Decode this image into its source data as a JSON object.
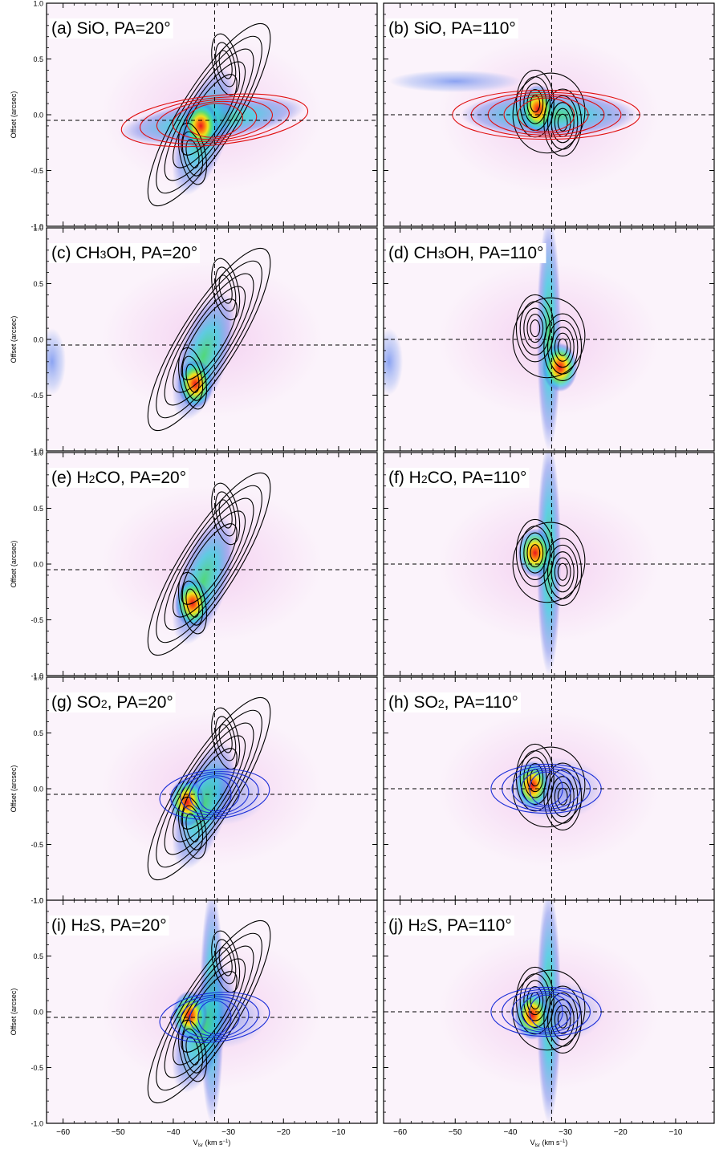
{
  "figure": {
    "xlabel_main": "V",
    "xlabel_sub": "lsr",
    "xlabel_unit_pre": " (km s",
    "xlabel_unit_exp": "−1",
    "xlabel_unit_post": ")",
    "ylabel": "Offset (arcsec)"
  },
  "colors": {
    "black_contours": "#000000",
    "red_contours": "#e01010",
    "blue_contours": "#1a2ed8",
    "dashed_lines": "#000000"
  },
  "chart_data": [
    {
      "type": "heatmap",
      "panel": "a",
      "label_pre": "(a) SiO, PA=20",
      "label_deg": "°",
      "label_suffix": "",
      "xlim": [
        -63,
        -3
      ],
      "ylim": [
        -1.0,
        1.0
      ],
      "x_ticks": [
        -60,
        -50,
        -40,
        -30,
        -20,
        -10
      ],
      "y_ticks": [
        -1.0,
        -0.5,
        0.0,
        0.5,
        1.0
      ],
      "y_tick_labels": [
        "-1.0",
        "-0.5",
        "0.0",
        "0.5",
        "1.0"
      ],
      "v_dash": -32.5,
      "h_dash": -0.05,
      "black_peaks": [
        [
          -36.5,
          -0.35
        ],
        [
          -30.5,
          0.45
        ]
      ],
      "overlay": "red",
      "overlay_center": [
        -32.5,
        -0.05
      ],
      "emission_peak": [
        -35,
        -0.1
      ]
    },
    {
      "type": "heatmap",
      "panel": "b",
      "label_pre": "(b) SiO, PA=110",
      "label_deg": "°",
      "label_suffix": "",
      "xlim": [
        -63,
        -3
      ],
      "ylim": [
        -1.0,
        1.0
      ],
      "x_ticks": [
        -60,
        -50,
        -40,
        -30,
        -20,
        -10
      ],
      "y_ticks": [
        -1.0,
        -0.5,
        0.0,
        0.5,
        1.0
      ],
      "y_tick_labels": [
        "-1.0",
        "-0.5",
        "0.0",
        "0.5",
        "1.0"
      ],
      "v_dash": -32.5,
      "h_dash": 0.0,
      "black_peaks": [
        [
          -35.5,
          0.1
        ],
        [
          -30.5,
          -0.07
        ]
      ],
      "overlay": "red",
      "overlay_center": [
        -33.5,
        0.0
      ],
      "emission_peak": [
        -35,
        0.05
      ]
    },
    {
      "type": "heatmap",
      "panel": "c",
      "label_pre": "(c) CH",
      "label_sub": "3",
      "label_post": "OH, PA=20",
      "label_deg": "°",
      "label_suffix": "",
      "xlim": [
        -63,
        -3
      ],
      "ylim": [
        -1.0,
        1.0
      ],
      "x_ticks": [
        -60,
        -50,
        -40,
        -30,
        -20,
        -10
      ],
      "y_ticks": [
        -1.0,
        -0.5,
        0.0,
        0.5,
        1.0
      ],
      "y_tick_labels": [
        "-1.0",
        "-0.5",
        "0.0",
        "0.5",
        "1.0"
      ],
      "v_dash": -32.5,
      "h_dash": -0.05,
      "black_peaks": [
        [
          -36.5,
          -0.35
        ],
        [
          -30.5,
          0.45
        ]
      ],
      "overlay": "none",
      "emission_peak": [
        -36,
        -0.4
      ]
    },
    {
      "type": "heatmap",
      "panel": "d",
      "label_pre": "(d) CH",
      "label_sub": "3",
      "label_post": "OH, PA=110",
      "label_deg": "°",
      "label_suffix": "",
      "xlim": [
        -63,
        -3
      ],
      "ylim": [
        -1.0,
        1.0
      ],
      "x_ticks": [
        -60,
        -50,
        -40,
        -30,
        -20,
        -10
      ],
      "y_ticks": [
        -1.0,
        -0.5,
        0.0,
        0.5,
        1.0
      ],
      "y_tick_labels": [
        "-1.0",
        "-0.5",
        "0.0",
        "0.5",
        "1.0"
      ],
      "v_dash": -32.5,
      "h_dash": 0.0,
      "black_peaks": [
        [
          -35.5,
          0.1
        ],
        [
          -30.5,
          -0.07
        ]
      ],
      "overlay": "none",
      "emission_peak": [
        -31,
        -0.25
      ]
    },
    {
      "type": "heatmap",
      "panel": "e",
      "label_pre": "(e) H",
      "label_sub": "2",
      "label_post": "CO, PA=20",
      "label_deg": "°",
      "label_suffix": "",
      "xlim": [
        -63,
        -3
      ],
      "ylim": [
        -1.0,
        1.0
      ],
      "x_ticks": [
        -60,
        -50,
        -40,
        -30,
        -20,
        -10
      ],
      "y_ticks": [
        -1.0,
        -0.5,
        0.0,
        0.5,
        1.0
      ],
      "y_tick_labels": [
        "-1.0",
        "-0.5",
        "0.0",
        "0.5",
        "1.0"
      ],
      "v_dash": -32.5,
      "h_dash": -0.05,
      "black_peaks": [
        [
          -36.5,
          -0.35
        ],
        [
          -30.5,
          0.45
        ]
      ],
      "overlay": "none",
      "emission_peak": [
        -36.5,
        -0.35
      ]
    },
    {
      "type": "heatmap",
      "panel": "f",
      "label_pre": "(f) H",
      "label_sub": "2",
      "label_post": "CO, PA=110",
      "label_deg": "°",
      "label_suffix": "",
      "xlim": [
        -63,
        -3
      ],
      "ylim": [
        -1.0,
        1.0
      ],
      "x_ticks": [
        -60,
        -50,
        -40,
        -30,
        -20,
        -10
      ],
      "y_ticks": [
        -1.0,
        -0.5,
        0.0,
        0.5,
        1.0
      ],
      "y_tick_labels": [
        "-1.0",
        "-0.5",
        "0.0",
        "0.5",
        "1.0"
      ],
      "v_dash": -32.5,
      "h_dash": 0.0,
      "black_peaks": [
        [
          -35.5,
          0.1
        ],
        [
          -30.5,
          -0.07
        ]
      ],
      "overlay": "none",
      "emission_peak": [
        -35.5,
        0.1
      ]
    },
    {
      "type": "heatmap",
      "panel": "g",
      "label_pre": "(g) SO",
      "label_sub": "2",
      "label_post": ", PA=20",
      "label_deg": "°",
      "label_suffix": "",
      "xlim": [
        -63,
        -3
      ],
      "ylim": [
        -1.0,
        1.0
      ],
      "x_ticks": [
        -60,
        -50,
        -40,
        -30,
        -20,
        -10
      ],
      "y_ticks": [
        -1.0,
        -0.5,
        0.0,
        0.5,
        1.0
      ],
      "y_tick_labels": [
        "-1.0",
        "-0.5",
        "0.0",
        "0.5",
        "1.0"
      ],
      "v_dash": -32.5,
      "h_dash": -0.05,
      "black_peaks": [
        [
          -36.5,
          -0.35
        ],
        [
          -30.5,
          0.45
        ]
      ],
      "overlay": "blue",
      "overlay_center": [
        -32.5,
        -0.05
      ],
      "emission_peak": [
        -37.5,
        -0.12
      ]
    },
    {
      "type": "heatmap",
      "panel": "h",
      "label_pre": "(h) SO",
      "label_sub": "2",
      "label_post": ", PA=110",
      "label_deg": "°",
      "label_suffix": "",
      "xlim": [
        -63,
        -3
      ],
      "ylim": [
        -1.0,
        1.0
      ],
      "x_ticks": [
        -60,
        -50,
        -40,
        -30,
        -20,
        -10
      ],
      "y_ticks": [
        -1.0,
        -0.5,
        0.0,
        0.5,
        1.0
      ],
      "y_tick_labels": [
        "-1.0",
        "-0.5",
        "0.0",
        "0.5",
        "1.0"
      ],
      "v_dash": -32.5,
      "h_dash": 0.0,
      "black_peaks": [
        [
          -35.5,
          0.1
        ],
        [
          -30.5,
          -0.07
        ]
      ],
      "overlay": "blue",
      "overlay_center": [
        -33.5,
        0.0
      ],
      "emission_peak": [
        -36,
        0.03
      ]
    },
    {
      "type": "heatmap",
      "panel": "i",
      "label_pre": "(i) H",
      "label_sub": "2",
      "label_post": "S, PA=20",
      "label_deg": "°",
      "label_suffix": "",
      "xlim": [
        -63,
        -3
      ],
      "ylim": [
        -1.0,
        1.0
      ],
      "x_ticks": [
        -60,
        -50,
        -40,
        -30,
        -20,
        -10
      ],
      "y_ticks": [
        -1.0,
        -0.5,
        0.0,
        0.5,
        1.0
      ],
      "y_tick_labels": [
        "-1.0",
        "-0.5",
        "0.0",
        "0.5",
        "1.0"
      ],
      "v_dash": -32.5,
      "h_dash": -0.05,
      "black_peaks": [
        [
          -36.5,
          -0.35
        ],
        [
          -30.5,
          0.45
        ]
      ],
      "overlay": "blue",
      "overlay_center": [
        -32.5,
        -0.05
      ],
      "emission_peak": [
        -37,
        -0.03
      ]
    },
    {
      "type": "heatmap",
      "panel": "j",
      "label_pre": "(j) H",
      "label_sub": "2",
      "label_post": "S, PA=110",
      "label_deg": "°",
      "label_suffix": "",
      "xlim": [
        -63,
        -3
      ],
      "ylim": [
        -1.0,
        1.0
      ],
      "x_ticks": [
        -60,
        -50,
        -40,
        -30,
        -20,
        -10
      ],
      "y_ticks": [
        -1.0,
        -0.5,
        0.0,
        0.5,
        1.0
      ],
      "y_tick_labels": [
        "-1.0",
        "-0.5",
        "0.0",
        "0.5",
        "1.0"
      ],
      "v_dash": -32.5,
      "h_dash": 0.0,
      "black_peaks": [
        [
          -35.5,
          0.1
        ],
        [
          -30.5,
          -0.07
        ]
      ],
      "overlay": "blue",
      "overlay_center": [
        -33.5,
        0.0
      ],
      "emission_peak": [
        -36,
        -0.03
      ]
    }
  ]
}
